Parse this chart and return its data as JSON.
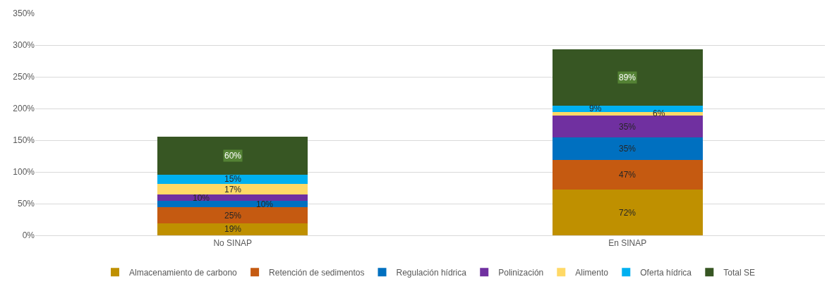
{
  "chart_data": {
    "type": "bar",
    "stacked": true,
    "categories": [
      "No SINAP",
      "En SINAP"
    ],
    "series": [
      {
        "name": "Almacenamiento de carbono",
        "color": "#bf9000",
        "values": [
          19,
          72
        ],
        "value_labels": [
          "19%",
          "72%"
        ]
      },
      {
        "name": "Retención de sedimentos",
        "color": "#c55a11",
        "values": [
          25,
          47
        ],
        "value_labels": [
          "25%",
          "47%"
        ]
      },
      {
        "name": "Regulación hídrica",
        "color": "#0070c0",
        "values": [
          10,
          35
        ],
        "value_labels": [
          "10%",
          "35%"
        ]
      },
      {
        "name": "Polinización",
        "color": "#7030a0",
        "values": [
          10,
          35
        ],
        "value_labels": [
          "10%",
          "35%"
        ]
      },
      {
        "name": "Alimento",
        "color": "#ffd966",
        "values": [
          17,
          6
        ],
        "value_labels": [
          "17%",
          "6%"
        ]
      },
      {
        "name": "Oferta hídrica",
        "color": "#00b0f0",
        "values": [
          15,
          9
        ],
        "value_labels": [
          "15%",
          "9%"
        ]
      },
      {
        "name": "Total SE",
        "color": "#375623",
        "values": [
          60,
          89
        ],
        "value_labels": [
          "60%",
          "89%"
        ]
      }
    ],
    "ylim": [
      0,
      350
    ],
    "yticks": [
      {
        "value": 0,
        "label": "0%"
      },
      {
        "value": 50,
        "label": "50%"
      },
      {
        "value": 100,
        "label": "100%"
      },
      {
        "value": 150,
        "label": "150%"
      },
      {
        "value": 200,
        "label": "200%"
      },
      {
        "value": 250,
        "label": "250%"
      },
      {
        "value": 300,
        "label": "300%"
      },
      {
        "value": 350,
        "label": "350%"
      }
    ],
    "grid": "y",
    "legend": "bottom"
  }
}
